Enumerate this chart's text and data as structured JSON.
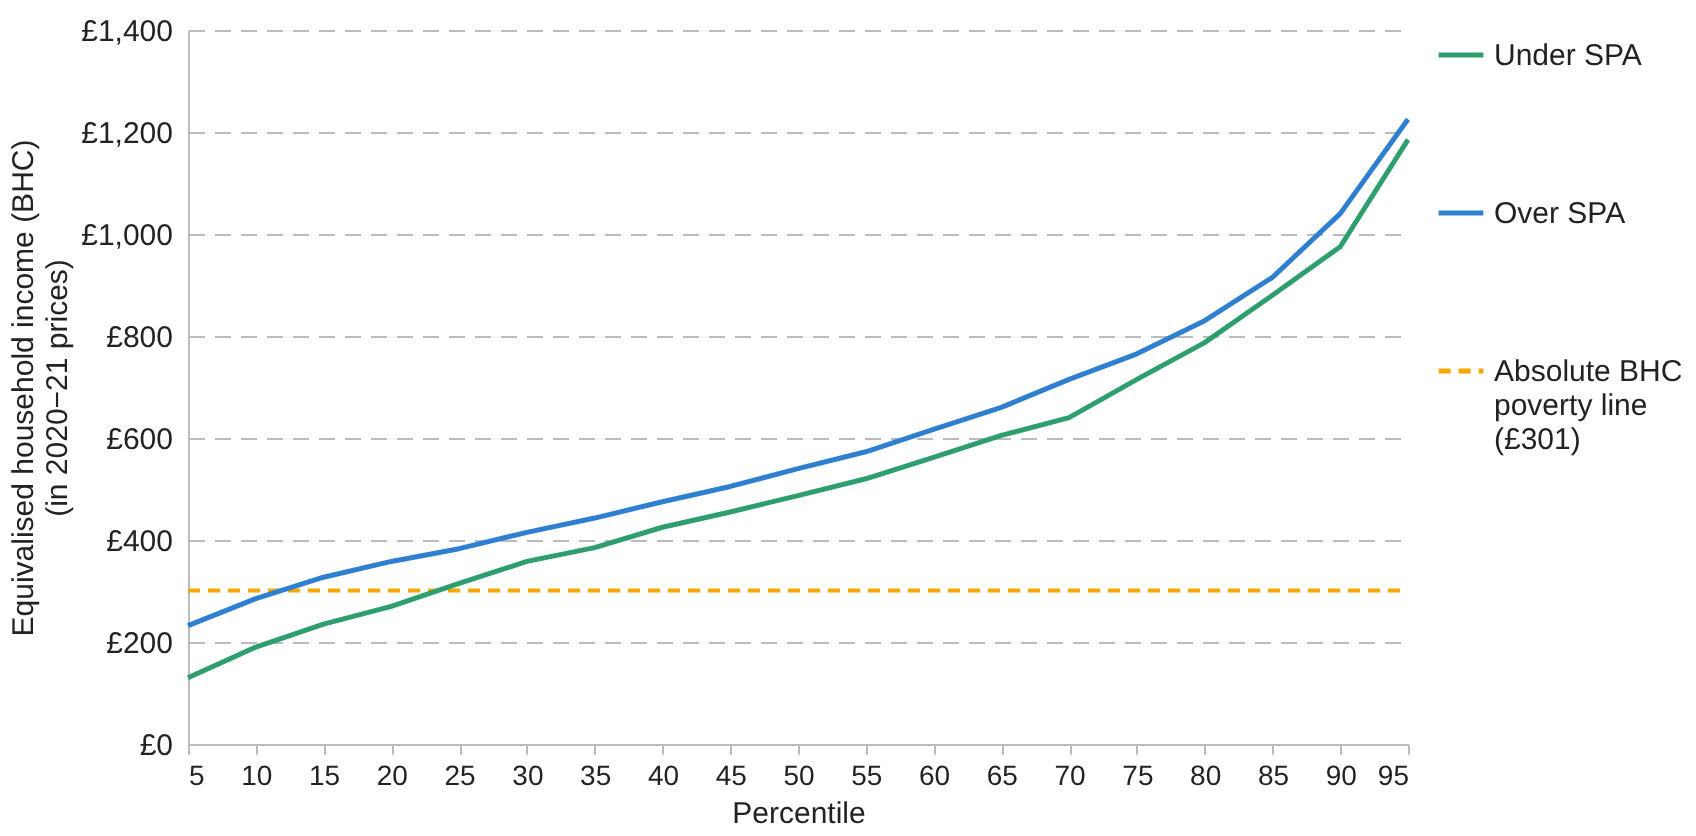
{
  "chart_data": {
    "type": "line",
    "xlabel": "Percentile",
    "ylabel": "Equivalised household income (BHC) (in 2020−21 prices)",
    "x": [
      5,
      10,
      15,
      20,
      25,
      30,
      35,
      40,
      45,
      50,
      55,
      60,
      65,
      70,
      75,
      80,
      85,
      90,
      95
    ],
    "xlim": [
      5,
      95
    ],
    "xticks": [
      5,
      10,
      15,
      20,
      25,
      30,
      35,
      40,
      45,
      50,
      55,
      60,
      65,
      70,
      75,
      80,
      85,
      90,
      95
    ],
    "ylim": [
      0,
      1400
    ],
    "yticks": [
      {
        "value": 0,
        "label": "£0"
      },
      {
        "value": 200,
        "label": "£200"
      },
      {
        "value": 400,
        "label": "£400"
      },
      {
        "value": 600,
        "label": "£600"
      },
      {
        "value": 800,
        "label": "£800"
      },
      {
        "value": 1000,
        "label": "£1,000"
      },
      {
        "value": 1200,
        "label": "£1,200"
      },
      {
        "value": 1400,
        "label": "£1,400"
      }
    ],
    "grid": "y",
    "legend": "right",
    "line_style": "solid",
    "series": [
      {
        "name": "Under SPA",
        "color": "#2e9e6e",
        "values": [
          130,
          190,
          235,
          270,
          315,
          358,
          385,
          425,
          455,
          487,
          520,
          562,
          605,
          640,
          715,
          787,
          880,
          975,
          1185
        ]
      },
      {
        "name": "Over SPA",
        "color": "#2f7fd1",
        "values": [
          232,
          285,
          327,
          358,
          383,
          415,
          443,
          475,
          505,
          540,
          573,
          617,
          660,
          715,
          765,
          830,
          915,
          1040,
          1225
        ]
      }
    ],
    "ref_lines": [
      {
        "axis": "y",
        "value": 301,
        "label": "Absolute BHC poverty line (£301)",
        "color": "#f5a800",
        "line_style": "dashed"
      }
    ]
  }
}
